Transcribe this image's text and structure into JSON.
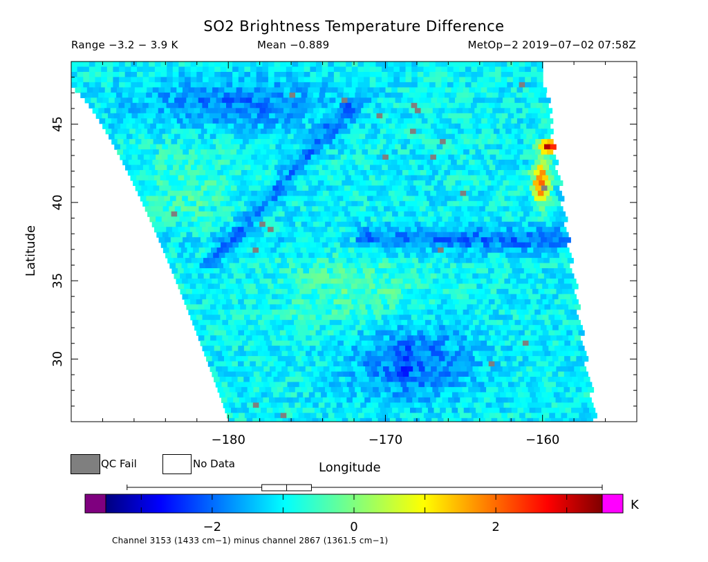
{
  "header": {
    "title": "SO2 Brightness Temperature Difference",
    "range": "Range −3.2 − 3.9 K",
    "mean": "Mean −0.889",
    "satellite": "MetOp−2 2019−07−02 07:58Z"
  },
  "legend": {
    "qc_fail": "QC Fail",
    "no_data": "No Data",
    "qc_fail_color": "#7f7f7f",
    "no_data_color": "#ffffff"
  },
  "colorbar": {
    "unit": "K",
    "ticks": [
      "−2",
      "0",
      "2"
    ],
    "tick_values": [
      -2,
      0,
      2
    ],
    "min": -3.5,
    "max": 3.5,
    "under_color": "#7f007f",
    "over_color": "#ff00ff",
    "box_whisker": {
      "min": -3.2,
      "q1": -1.3,
      "median": -0.95,
      "q3": -0.6,
      "max": 3.9
    },
    "caption": "Channel 3153 (1433 cm−1) minus channel 2867 (1361.5 cm−1)"
  },
  "chart_data": {
    "type": "heatmap",
    "title": "SO2 Brightness Temperature Difference",
    "xlabel": "Longitude",
    "ylabel": "Latitude",
    "xlim": [
      -190,
      -154
    ],
    "ylim": [
      26,
      49
    ],
    "x_ticks": [
      -180,
      -170,
      -160
    ],
    "x_tick_labels": [
      "−180",
      "−170",
      "−160"
    ],
    "y_ticks": [
      30,
      35,
      40,
      45
    ],
    "y_tick_labels": [
      "30",
      "35",
      "40",
      "45"
    ],
    "colorscale": "jet",
    "value_range": [
      -3.2,
      3.9
    ],
    "mean": -0.889,
    "units": "K",
    "swath_corners": {
      "top_left": [
        -190,
        47.5
      ],
      "top_right": [
        -160.2,
        49
      ],
      "bottom_left": [
        -179.9,
        26
      ],
      "bottom_right": [
        -156.8,
        26
      ]
    },
    "features": [
      {
        "description": "hot anomaly",
        "lon": -159.8,
        "lat": 43.7,
        "value": 3.9
      },
      {
        "description": "warm band",
        "lon": -160.3,
        "lat": 41.5,
        "value": 2.3
      },
      {
        "description": "cool region",
        "lon": -169,
        "lat": 30,
        "value": -2.2
      }
    ]
  }
}
